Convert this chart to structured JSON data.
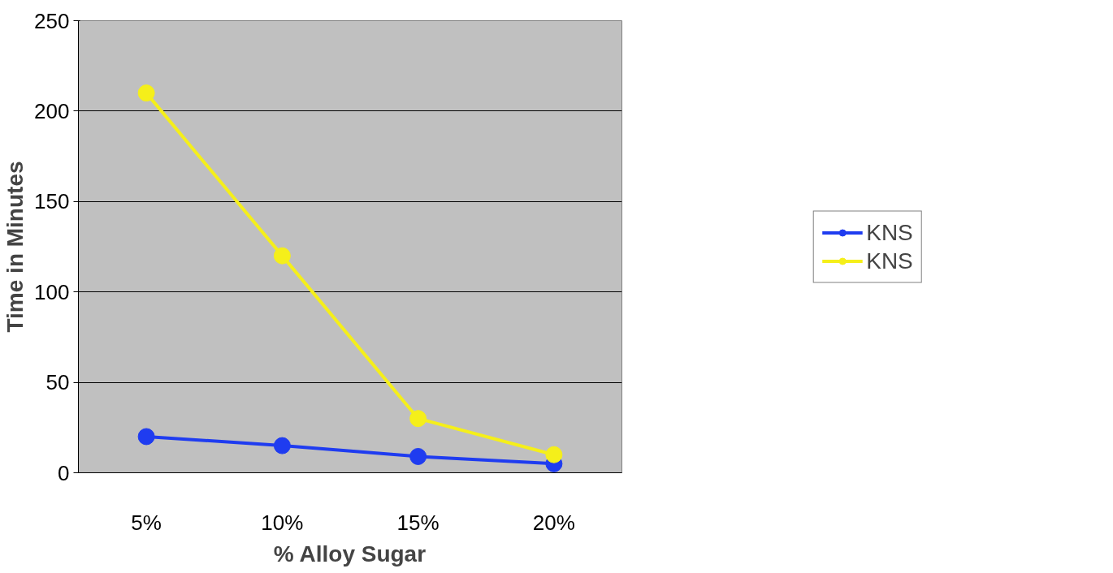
{
  "chart_data": {
    "type": "line",
    "xlabel": "% Alloy Sugar",
    "ylabel": "Time in Minutes",
    "categories": [
      "5%",
      "10%",
      "15%",
      "20%"
    ],
    "series": [
      {
        "name": "KNS",
        "color": "#1f3cf0",
        "values": [
          20,
          15,
          9,
          5
        ]
      },
      {
        "name": "KNS",
        "color": "#f5ef1a",
        "values": [
          210,
          120,
          30,
          10
        ]
      }
    ],
    "ylim": [
      0,
      250
    ],
    "yticks": [
      0,
      50,
      100,
      150,
      200,
      250
    ],
    "grid": "y",
    "legend": "right",
    "marker": "circle",
    "line_style": "solid"
  }
}
